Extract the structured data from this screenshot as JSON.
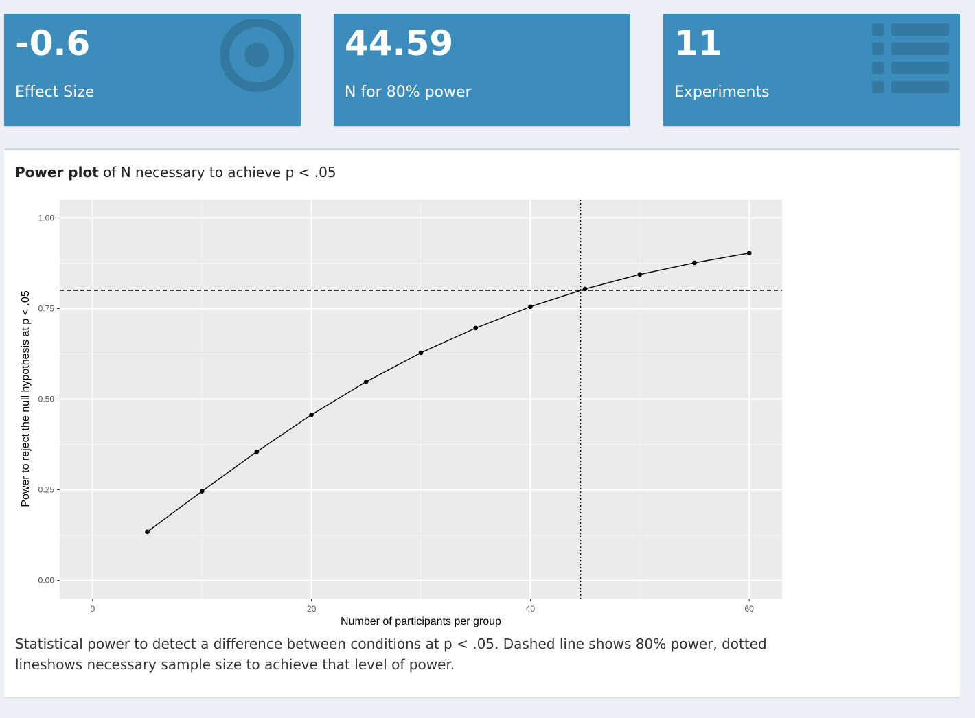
{
  "value_boxes": [
    {
      "value": "-0.6",
      "label": "Effect Size",
      "icon": "bullseye-icon"
    },
    {
      "value": "44.59",
      "label": "N for 80% power",
      "icon": ""
    },
    {
      "value": "11",
      "label": "Experiments",
      "icon": "list-icon"
    }
  ],
  "panel": {
    "title_bold": "Power plot",
    "title_rest": " of N necessary to achieve p < .05",
    "caption": "Statistical power to detect a difference between conditions at p < .05. Dashed line shows 80% power, dotted lineshows necessary sample size to achieve that level of power."
  },
  "colors": {
    "box_bg": "#3c8dbc",
    "plot_bg": "#ebebeb",
    "page_bg": "#ecf0f5"
  },
  "chart_data": {
    "type": "line",
    "title": "",
    "xlabel": "Number of participants per group",
    "ylabel": "Power to reject the null hypothesis at p < .05",
    "xlim": [
      -3,
      63
    ],
    "ylim": [
      -0.05,
      1.05
    ],
    "x_ticks": [
      0,
      20,
      40,
      60
    ],
    "x_tick_labels": [
      "0",
      "20",
      "40",
      "60"
    ],
    "y_ticks": [
      0,
      0.25,
      0.5,
      0.75,
      1.0
    ],
    "y_tick_labels": [
      "0.00",
      "0.25",
      "0.50",
      "0.75",
      "1.00"
    ],
    "grid": true,
    "series": [
      {
        "x": [
          5,
          10,
          15,
          20,
          25,
          30,
          35,
          40,
          45,
          50,
          55,
          60
        ],
        "y": [
          0.134,
          0.246,
          0.355,
          0.457,
          0.548,
          0.628,
          0.696,
          0.755,
          0.804,
          0.844,
          0.876,
          0.903
        ]
      }
    ],
    "hline": {
      "y": 0.8,
      "style": "dashed"
    },
    "vline": {
      "x": 44.59,
      "style": "dotted"
    }
  }
}
